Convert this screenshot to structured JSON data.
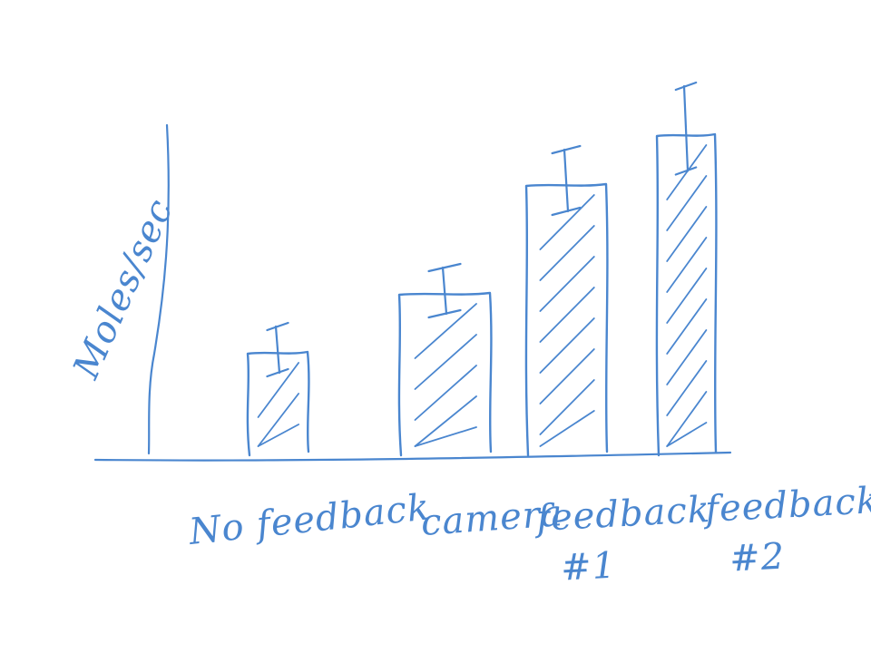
{
  "chart_data": {
    "type": "bar",
    "ylabel": "Moles/sec",
    "categories": [
      "No feedback",
      "camera",
      "feedback #1",
      "feedback #2"
    ],
    "values": [
      110,
      175,
      295,
      350
    ],
    "errors": [
      30,
      30,
      40,
      55
    ],
    "ylim": [
      0,
      400
    ],
    "grid": false,
    "bar_style": "hatched"
  },
  "colors": {
    "ink": "#4a86cf",
    "background": "#ffffff"
  }
}
